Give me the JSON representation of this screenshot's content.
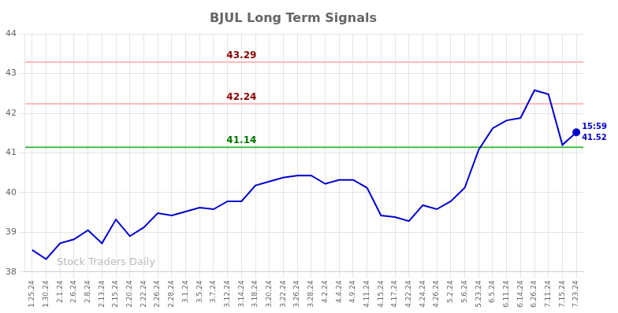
{
  "chart_data": {
    "type": "line",
    "title": "BJUL Long Term Signals",
    "categories": [
      "1.25.24",
      "1.30.24",
      "2.1.24",
      "2.6.24",
      "2.8.24",
      "2.13.24",
      "2.15.24",
      "2.20.24",
      "2.22.24",
      "2.26.24",
      "2.28.24",
      "3.1.24",
      "3.5.24",
      "3.7.24",
      "3.12.24",
      "3.14.24",
      "3.18.24",
      "3.20.24",
      "3.22.24",
      "3.26.24",
      "3.28.24",
      "4.2.24",
      "4.4.24",
      "4.9.24",
      "4.11.24",
      "4.15.24",
      "4.17.24",
      "4.22.24",
      "4.24.24",
      "4.26.24",
      "5.2.24",
      "5.6.24",
      "5.23.24",
      "6.5.24",
      "6.11.24",
      "6.14.24",
      "6.26.24",
      "7.11.24",
      "7.15.24",
      "7.23.24"
    ],
    "values": [
      38.55,
      38.32,
      38.72,
      38.82,
      39.05,
      38.72,
      39.32,
      38.9,
      39.12,
      39.48,
      39.42,
      39.52,
      39.62,
      39.58,
      39.78,
      39.78,
      40.18,
      40.28,
      40.38,
      40.43,
      40.43,
      40.22,
      40.32,
      40.32,
      40.12,
      39.42,
      39.38,
      39.28,
      39.68,
      39.58,
      39.78,
      40.12,
      41.08,
      41.62,
      41.82,
      41.88,
      42.58,
      42.48,
      41.2,
      41.52
    ],
    "color": "#0000cc",
    "ylim": [
      38,
      44
    ],
    "yticks": [
      38,
      39,
      40,
      41,
      42,
      43,
      44
    ],
    "grid": true,
    "annotations": [
      {
        "type": "hline",
        "value": 43.29,
        "label": "43.29",
        "color": "#ffbbbb",
        "label_color": "#880000"
      },
      {
        "type": "hline",
        "value": 42.24,
        "label": "42.24",
        "color": "#ffbbbb",
        "label_color": "#880000"
      },
      {
        "type": "hline",
        "value": 41.14,
        "label": "41.14",
        "color": "#44bb44",
        "label_color": "#007700"
      },
      {
        "type": "end_label",
        "text": "15:59",
        "color": "#0000cc"
      },
      {
        "type": "end_label",
        "text": "41.52",
        "color": "#0000cc"
      },
      {
        "type": "watermark",
        "text": "Stock Traders Daily",
        "color": "#bbbbbb"
      }
    ]
  }
}
